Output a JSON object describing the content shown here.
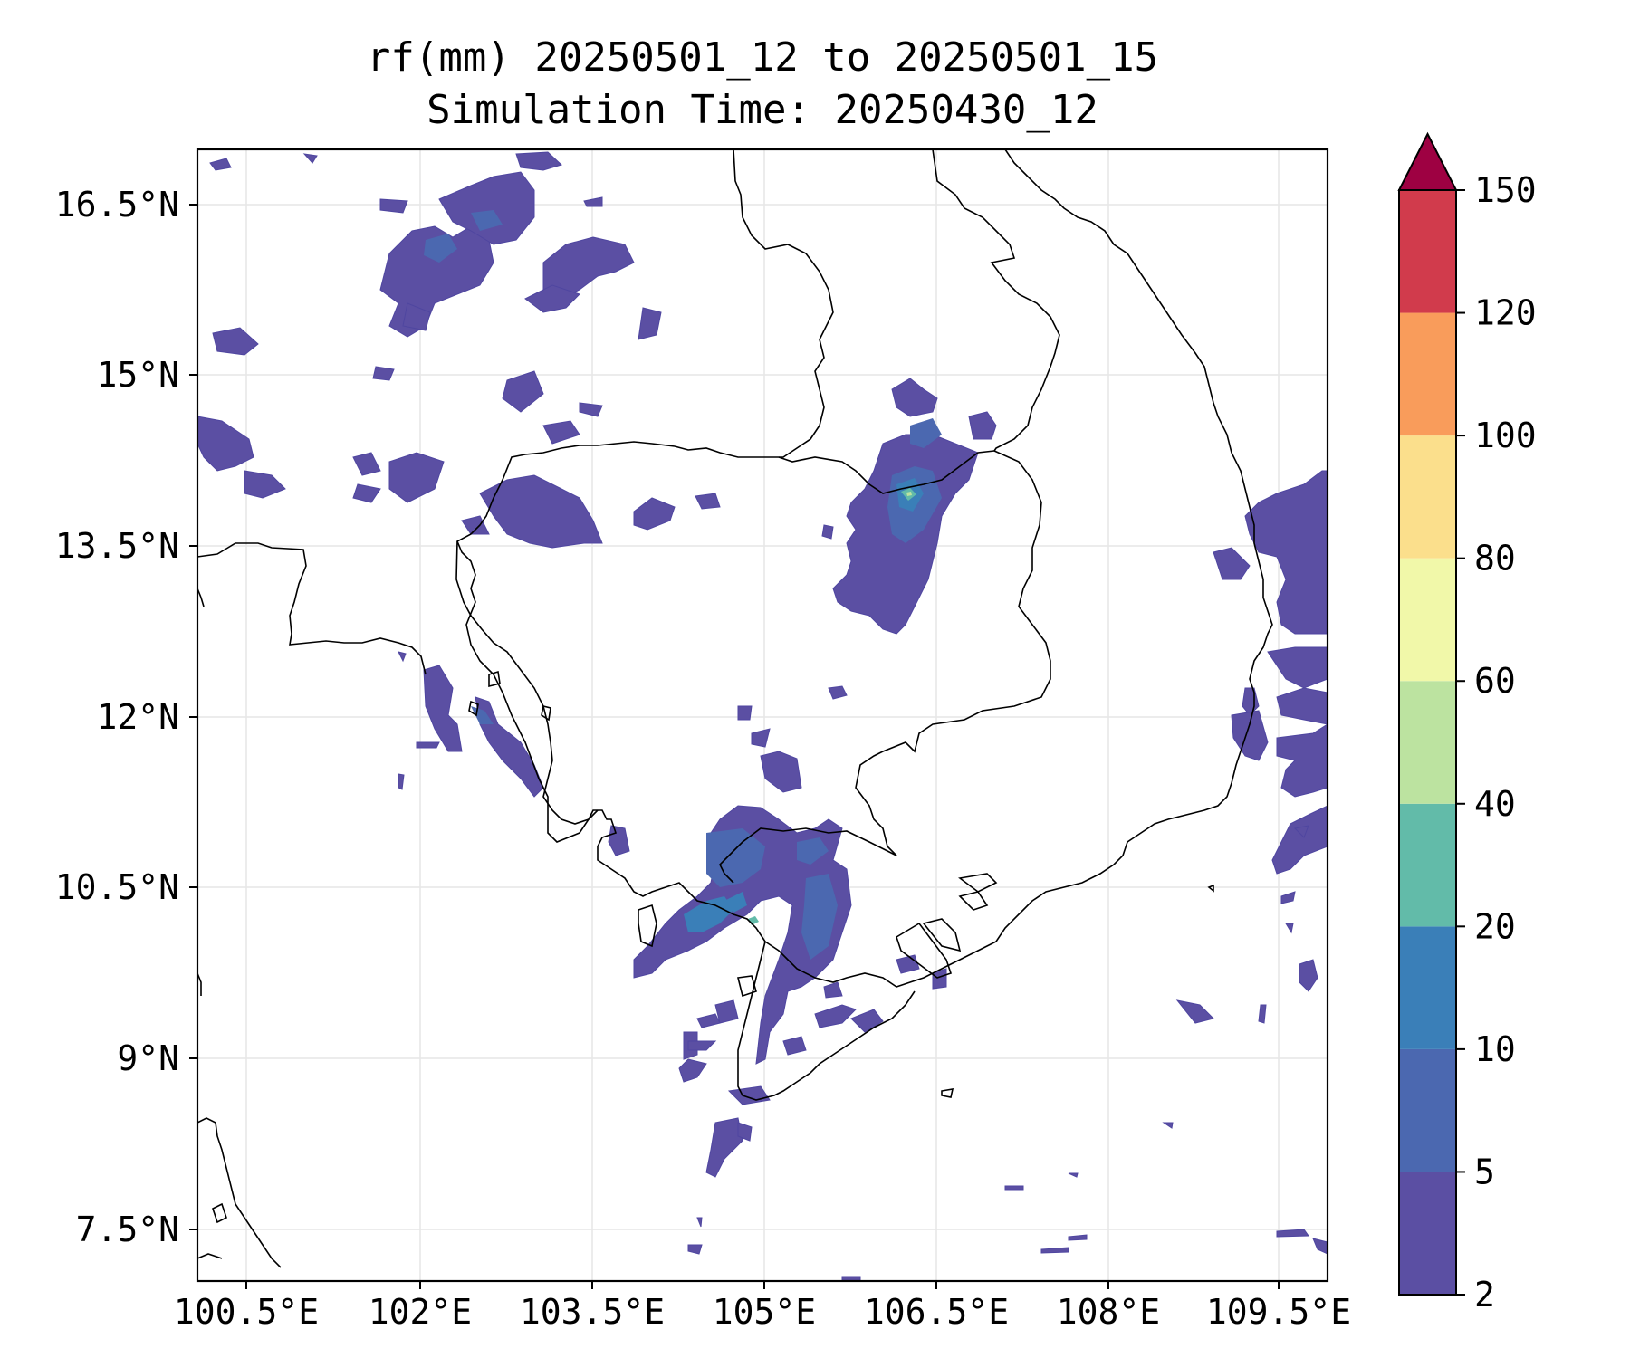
{
  "title": {
    "line1": "rf(mm) 20250501_12 to 20250501_15",
    "line2": "Simulation Time: 20250430_12"
  },
  "axes": {
    "lon_ticks": [
      "100.5°E",
      "102°E",
      "103.5°E",
      "105°E",
      "106.5°E",
      "108°E",
      "109.5°E"
    ],
    "lat_ticks": [
      "16.5°N",
      "15°N",
      "13.5°N",
      "12°N",
      "10.5°N",
      "9°N",
      "7.5°N"
    ]
  },
  "colorbar": {
    "levels": [
      "2",
      "5",
      "10",
      "20",
      "40",
      "60",
      "80",
      "100",
      "120",
      "150"
    ],
    "colors": [
      "#5b4fa3",
      "#4b68b0",
      "#3a7fb8",
      "#62bba9",
      "#bce3a0",
      "#f1f8a9",
      "#fbdf8c",
      "#f99c5b",
      "#d13b4c",
      "#9e0142"
    ],
    "extend": "max"
  },
  "chart_data": {
    "type": "heatmap",
    "variable": "rf(mm)",
    "lon_range": [
      100.0,
      110.0
    ],
    "lat_range": [
      7.0,
      17.0
    ],
    "grid": true,
    "colorbar_levels": [
      2,
      5,
      10,
      20,
      40,
      60,
      80,
      100,
      120,
      150
    ],
    "peak_cells": [
      {
        "lon": 106.4,
        "lat": 13.9,
        "value": 25
      },
      {
        "lon": 105.0,
        "lat": 10.2,
        "value": 22
      }
    ]
  }
}
